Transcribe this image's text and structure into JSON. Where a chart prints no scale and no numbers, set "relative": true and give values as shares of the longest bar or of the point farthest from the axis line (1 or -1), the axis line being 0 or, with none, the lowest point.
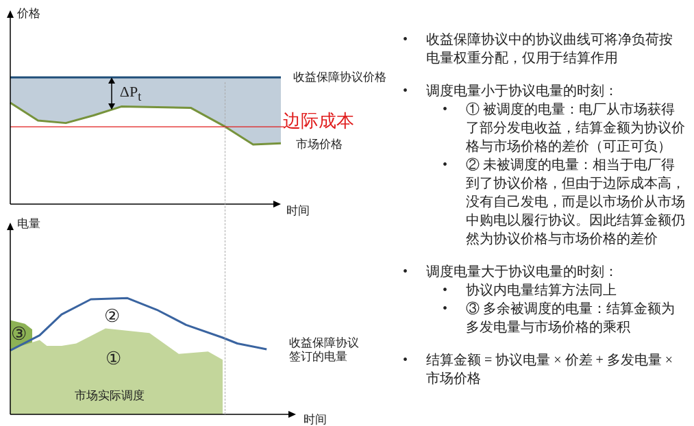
{
  "chart_data": [
    {
      "type": "line",
      "ylabel": "价格",
      "xlabel": "时间",
      "relative": true,
      "legend": false,
      "categories": [
        null,
        null,
        null,
        null,
        null,
        null,
        null,
        null,
        null,
        null,
        null,
        null,
        null,
        null,
        null,
        null,
        null,
        null,
        null,
        null,
        null,
        null,
        null,
        null,
        null,
        null,
        null,
        null,
        null,
        null,
        null,
        null,
        null,
        null,
        null,
        null,
        null,
        null,
        null,
        null
      ],
      "series": [
        {
          "name": "收益保障协议价格",
          "color": "#1f4e79",
          "values": [
            1,
            null,
            null,
            null,
            null,
            null,
            null,
            null,
            null,
            null,
            null,
            null,
            null,
            null,
            null,
            null,
            null,
            null,
            null,
            null,
            null,
            null,
            null,
            null,
            null,
            null,
            null,
            null,
            null,
            null,
            null,
            null,
            null,
            null,
            null,
            null,
            null,
            null,
            null,
            1
          ],
          "upper": [
            1,
            null,
            null,
            null,
            1,
            null,
            null,
            null,
            1,
            null,
            null,
            null,
            1,
            null,
            null,
            null,
            1,
            null,
            null,
            null,
            null,
            null,
            null,
            null,
            null,
            null,
            1,
            null,
            null,
            null,
            null,
            1,
            null,
            null,
            null,
            1,
            null,
            null,
            null,
            1
          ],
          "lower": [
            0.8,
            null,
            null,
            null,
            0.66,
            null,
            null,
            null,
            0.64,
            null,
            null,
            null,
            0.7,
            null,
            null,
            null,
            0.77,
            null,
            null,
            null,
            null,
            null,
            null,
            null,
            null,
            null,
            0.76,
            null,
            null,
            null,
            null,
            0.61,
            null,
            null,
            null,
            0.47,
            null,
            null,
            null,
            0.48
          ]
        },
        {
          "name": "市场价格",
          "color": "#77933c",
          "values": [
            0.8,
            null,
            null,
            null,
            0.66,
            null,
            null,
            null,
            0.64,
            null,
            null,
            null,
            0.7,
            null,
            null,
            null,
            0.77,
            null,
            null,
            null,
            null,
            null,
            null,
            null,
            null,
            null,
            0.76,
            null,
            null,
            null,
            null,
            0.61,
            null,
            null,
            null,
            0.47,
            null,
            null,
            null,
            0.48
          ]
        }
      ],
      "ref_lines": [
        {
          "axis": "y",
          "value": 0.61,
          "label": "边际成本",
          "color": "#e01b1b"
        }
      ],
      "annotations": [
        "ΔP$_{t}$"
      ]
    },
    {
      "type": "line",
      "ylabel": "电量",
      "xlabel": "时间",
      "relative": true,
      "legend": false,
      "categories": [
        null,
        null,
        null,
        null,
        null,
        null,
        null,
        null,
        null,
        null,
        null,
        null,
        null,
        null,
        null,
        null,
        null,
        null,
        null,
        null,
        null,
        null,
        null,
        null,
        null,
        null,
        null,
        null,
        null,
        null,
        null,
        null,
        null,
        null,
        null,
        null,
        null,
        null,
        null,
        null
      ],
      "series": [
        {
          "type": "area",
          "color": "#8db255",
          "values": [
            0.81,
            null,
            0.78,
            0.73,
            null,
            null,
            null,
            null,
            null,
            null,
            null,
            null,
            null,
            null,
            null,
            null,
            null,
            null,
            null,
            null,
            null,
            null,
            null,
            null,
            null,
            null,
            null,
            null,
            null,
            null,
            null,
            null,
            null,
            null,
            null,
            null,
            null,
            null,
            null,
            null
          ]
        },
        {
          "type": "area",
          "name": "市场实际调度",
          "color": "#c3d69b",
          "values": [
            0.56,
            null,
            null,
            null,
            0.64,
            0.59,
            null,
            0.59,
            null,
            0.61,
            null,
            null,
            null,
            0.74,
            null,
            null,
            null,
            null,
            null,
            0.7,
            null,
            null,
            null,
            0.52,
            null,
            null,
            null,
            0.54,
            null,
            0.47,
            null,
            null,
            null,
            null,
            null,
            null,
            null,
            null,
            null,
            null
          ]
        },
        {
          "type": "line",
          "name": "收益保障协议签订的电量",
          "color": "#3a64a0",
          "values": [
            0.55,
            null,
            null,
            null,
            0.68,
            null,
            null,
            0.86,
            null,
            null,
            null,
            0.99,
            null,
            null,
            null,
            null,
            1,
            null,
            null,
            null,
            0.9,
            null,
            null,
            null,
            0.77,
            null,
            null,
            null,
            null,
            0.66,
            null,
            0.61,
            null,
            null,
            null,
            0.56,
            null,
            null,
            null,
            null
          ]
        }
      ],
      "annotations": [
        "①",
        "②",
        "③"
      ]
    },
    {
      "type": "other",
      "annotations": [
        "• 收益保障协议中的协议曲线可将净负荷按电量权重分配，仅用于结算作用",
        "• 调度电量小于协议电量的时刻：",
        "• ① 被调度的电量：电厂从市场获得了部分发电收益，结算金额为协议价格与市场价格的差价（可正可负）",
        "• ② 未被调度的电量：相当于电厂得到了协议价格，但由于边际成本高，没有自己发电，而是以市场价从市场中购电以履行协议。因此结算金额仍然为协议价格与市场价格的差价",
        "• 调度电量大于协议电量的时刻：",
        "• 协议内电量结算方法同上",
        "• ③ 多余被调度的电量：结算金额为多发电量与市场价格的乘积",
        "• 结算金额 = 协议电量 × 价差 + 多发电量 × 市场价格"
      ]
    }
  ]
}
